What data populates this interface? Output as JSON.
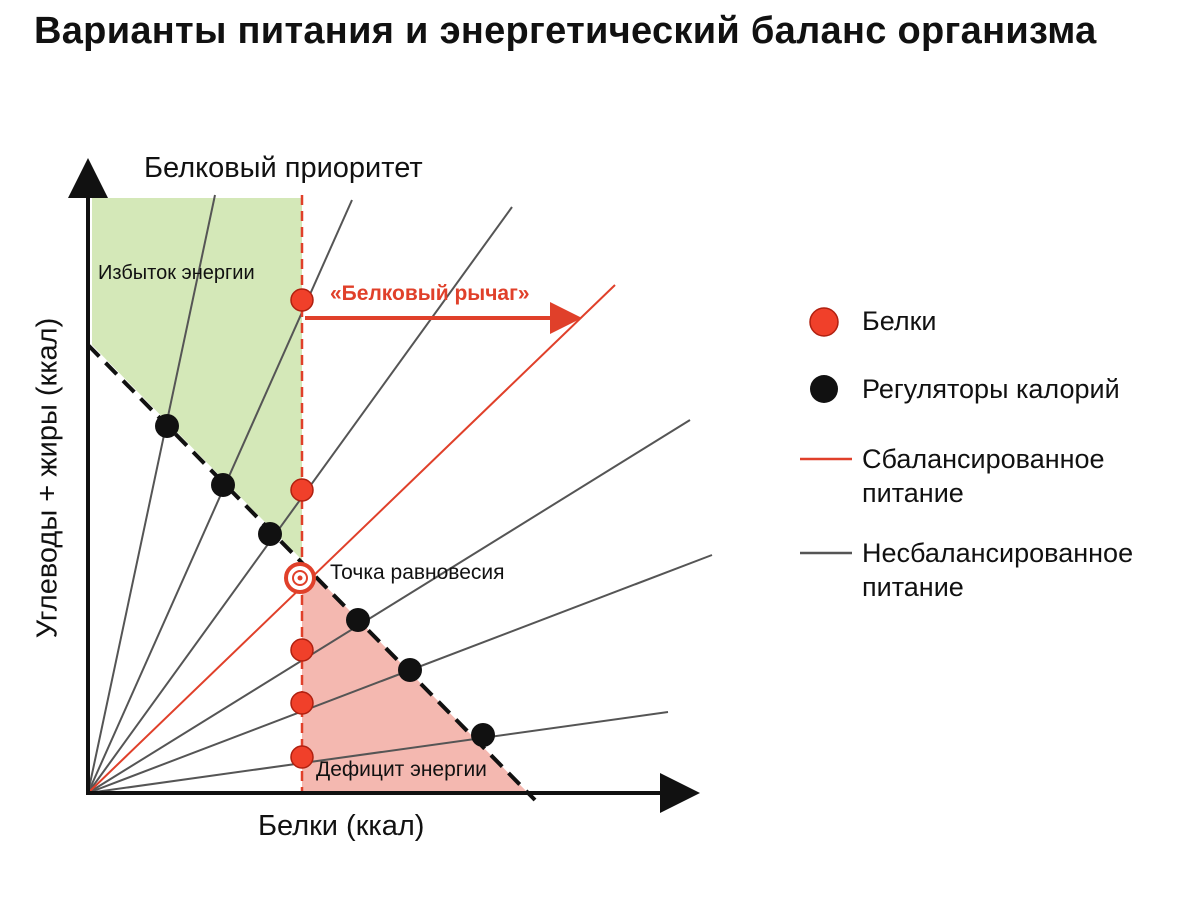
{
  "title": "Варианты питания и энергетический баланс организма",
  "diagram": {
    "top_label": "Белковый приоритет",
    "excess_label": "Избыток энергии",
    "lever_label": "«Белковый рычаг»",
    "equilibrium_label": "Точка равновесия",
    "deficit_label": "Дефицит энергии",
    "x_axis_label": "Белки (ккал)",
    "y_axis_label": "Углеводы + жиры (ккал)"
  },
  "legend": {
    "items": [
      "Белки",
      "Регуляторы калорий",
      "Сбалансированное питание",
      "Несбалансированное питание"
    ]
  }
}
